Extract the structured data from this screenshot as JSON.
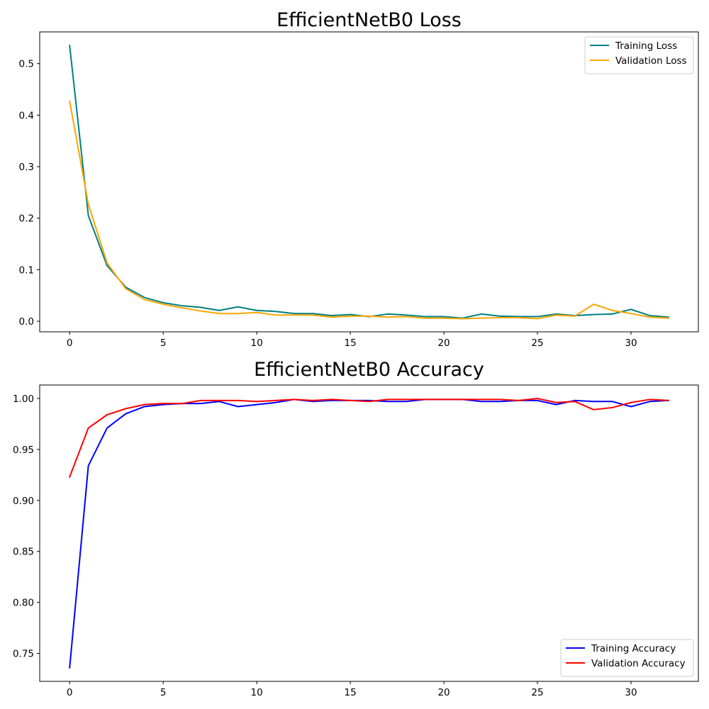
{
  "chart_data": [
    {
      "type": "line",
      "title": "EfficientNetB0 Loss",
      "xlabel": "",
      "ylabel": "",
      "xlim": [
        -1.6,
        33.6
      ],
      "ylim": [
        -0.0205,
        0.5615
      ],
      "xticks": [
        0,
        5,
        10,
        15,
        20,
        25,
        30
      ],
      "yticks": [
        0.0,
        0.1,
        0.2,
        0.3,
        0.4,
        0.5
      ],
      "ytick_decimals": 1,
      "legend_position": "upper right",
      "x": [
        0,
        1,
        2,
        3,
        4,
        5,
        6,
        7,
        8,
        9,
        10,
        11,
        12,
        13,
        14,
        15,
        16,
        17,
        18,
        19,
        20,
        21,
        22,
        23,
        24,
        25,
        26,
        27,
        28,
        29,
        30,
        31,
        32
      ],
      "series": [
        {
          "name": "Training Loss",
          "color": "#008080",
          "values": [
            0.535,
            0.205,
            0.108,
            0.066,
            0.046,
            0.036,
            0.03,
            0.027,
            0.021,
            0.028,
            0.021,
            0.019,
            0.015,
            0.015,
            0.011,
            0.013,
            0.009,
            0.014,
            0.012,
            0.009,
            0.009,
            0.006,
            0.014,
            0.01,
            0.009,
            0.009,
            0.014,
            0.011,
            0.013,
            0.014,
            0.023,
            0.011,
            0.008
          ]
        },
        {
          "name": "Validation Loss",
          "color": "#ffa500",
          "values": [
            0.427,
            0.227,
            0.113,
            0.063,
            0.042,
            0.033,
            0.026,
            0.02,
            0.015,
            0.015,
            0.017,
            0.012,
            0.012,
            0.012,
            0.008,
            0.01,
            0.01,
            0.008,
            0.009,
            0.006,
            0.006,
            0.005,
            0.006,
            0.007,
            0.007,
            0.005,
            0.012,
            0.01,
            0.033,
            0.021,
            0.015,
            0.008,
            0.006
          ]
        }
      ]
    },
    {
      "type": "line",
      "title": "EfficientNetB0 Accuracy",
      "xlabel": "",
      "ylabel": "",
      "xlim": [
        -1.6,
        33.6
      ],
      "ylim": [
        0.7226,
        1.0132
      ],
      "xticks": [
        0,
        5,
        10,
        15,
        20,
        25,
        30
      ],
      "yticks": [
        0.75,
        0.8,
        0.85,
        0.9,
        0.95,
        1.0
      ],
      "ytick_decimals": 2,
      "legend_position": "lower right",
      "x": [
        0,
        1,
        2,
        3,
        4,
        5,
        6,
        7,
        8,
        9,
        10,
        11,
        12,
        13,
        14,
        15,
        16,
        17,
        18,
        19,
        20,
        21,
        22,
        23,
        24,
        25,
        26,
        27,
        28,
        29,
        30,
        31,
        32
      ],
      "series": [
        {
          "name": "Training Accuracy",
          "color": "#0000ff",
          "values": [
            0.736,
            0.934,
            0.971,
            0.985,
            0.992,
            0.994,
            0.995,
            0.995,
            0.997,
            0.992,
            0.994,
            0.996,
            0.999,
            0.997,
            0.998,
            0.998,
            0.998,
            0.997,
            0.997,
            0.999,
            0.999,
            0.999,
            0.997,
            0.997,
            0.998,
            0.998,
            0.994,
            0.998,
            0.997,
            0.997,
            0.992,
            0.997,
            0.998
          ]
        },
        {
          "name": "Validation Accuracy",
          "color": "#ff0000",
          "values": [
            0.923,
            0.971,
            0.984,
            0.99,
            0.994,
            0.995,
            0.995,
            0.998,
            0.998,
            0.998,
            0.997,
            0.998,
            0.999,
            0.998,
            0.999,
            0.998,
            0.997,
            0.999,
            0.999,
            0.999,
            0.999,
            0.999,
            0.999,
            0.999,
            0.998,
            1.0,
            0.996,
            0.997,
            0.989,
            0.991,
            0.996,
            0.999,
            0.998
          ]
        }
      ]
    }
  ]
}
